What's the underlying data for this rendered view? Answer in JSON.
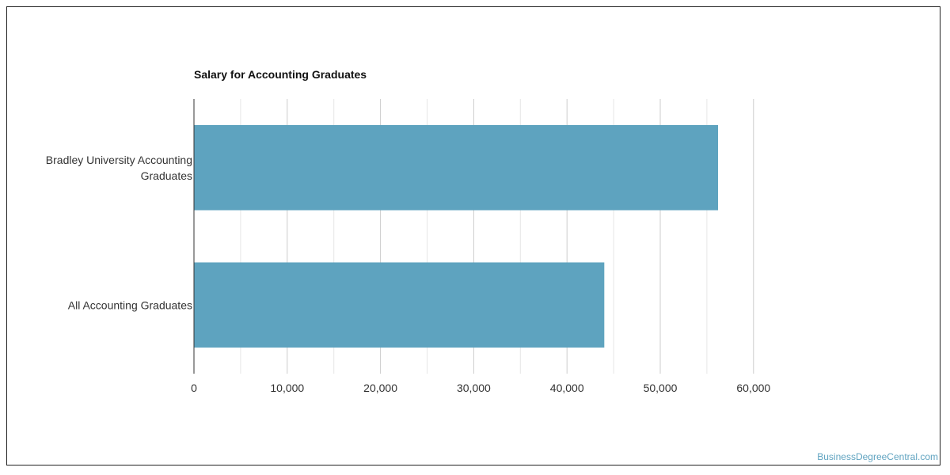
{
  "colors": {
    "bar": "#5ea3bf",
    "grid_major": "#cccccc",
    "grid_minor": "#e6e6e6",
    "axis": "#333333"
  },
  "chart_data": {
    "type": "bar",
    "orientation": "horizontal",
    "title": "Salary for Accounting Graduates",
    "categories": [
      [
        "Bradley University Accounting",
        "Graduates"
      ],
      [
        "All Accounting Graduates"
      ]
    ],
    "values": [
      56200,
      44000
    ],
    "xlim": [
      0,
      60000
    ],
    "xticks": [
      0,
      10000,
      20000,
      30000,
      40000,
      50000,
      60000
    ],
    "xtick_labels": [
      "0",
      "10,000",
      "20,000",
      "30,000",
      "40,000",
      "50,000",
      "60,000"
    ],
    "grid": true,
    "legend": "none"
  },
  "watermark": "BusinessDegreeCentral.com"
}
